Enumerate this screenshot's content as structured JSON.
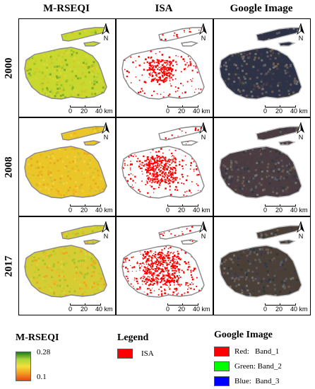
{
  "columns": [
    "M-RSEQI",
    "ISA",
    "Google Image"
  ],
  "rows": [
    "2000",
    "2008",
    "2017"
  ],
  "north_label": "N",
  "scale": {
    "labels": [
      "0",
      "20",
      "40 km"
    ]
  },
  "legend_rseqi": {
    "title": "M-RSEQI",
    "max": "0.28",
    "min": "0.1",
    "colors": [
      "#1a7a1a",
      "#a7d83a",
      "#f3e03a",
      "#f29a1f",
      "#e8441a"
    ]
  },
  "legend_isa": {
    "title": "Legend",
    "label": "ISA",
    "color": "#ff0000"
  },
  "legend_google": {
    "title": "Google Image",
    "bands": [
      {
        "label": "Red:   Band_1",
        "color": "#ff0000"
      },
      {
        "label": "Green: Band_2",
        "color": "#00ff00"
      },
      {
        "label": "Blue:  Band_3",
        "color": "#0000ff"
      }
    ]
  },
  "map_fill": {
    "rseqi": [
      "#c8d82e",
      "#eac628",
      "#d6cc34"
    ],
    "isa_density": [
      0.25,
      0.45,
      0.7
    ],
    "google": [
      "#2e3246",
      "#4a3c40",
      "#4a4038"
    ]
  }
}
